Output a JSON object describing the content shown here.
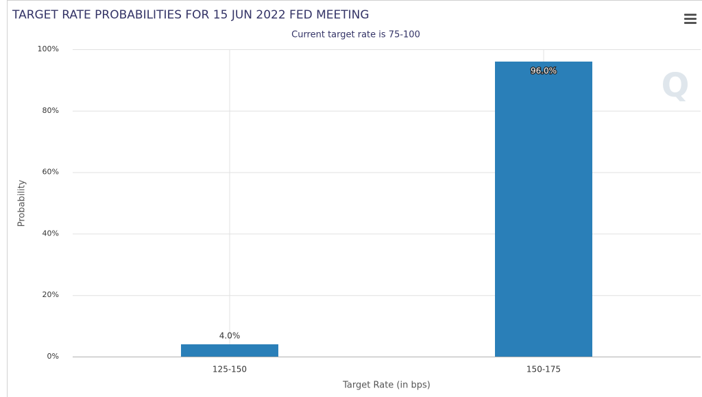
{
  "chart_data": {
    "type": "bar",
    "title": "TARGET RATE PROBABILITIES FOR 15 JUN 2022 FED MEETING",
    "subtitle": "Current target rate is 75-100",
    "x_label": "Target Rate (in bps)",
    "y_label": "Probability",
    "categories": [
      "125-150",
      "150-175"
    ],
    "values": [
      4.0,
      96.0
    ],
    "value_labels": [
      "4.0%",
      "96.0%"
    ],
    "color": "#2a7fb8",
    "ylim": [
      0,
      100
    ],
    "yticks": [
      {
        "value": 0,
        "label": "0%"
      },
      {
        "value": 20,
        "label": "20%"
      },
      {
        "value": 40,
        "label": "40%"
      },
      {
        "value": 60,
        "label": "60%"
      },
      {
        "value": 80,
        "label": "80%"
      },
      {
        "value": 100,
        "label": "100%"
      }
    ],
    "grid": true
  }
}
